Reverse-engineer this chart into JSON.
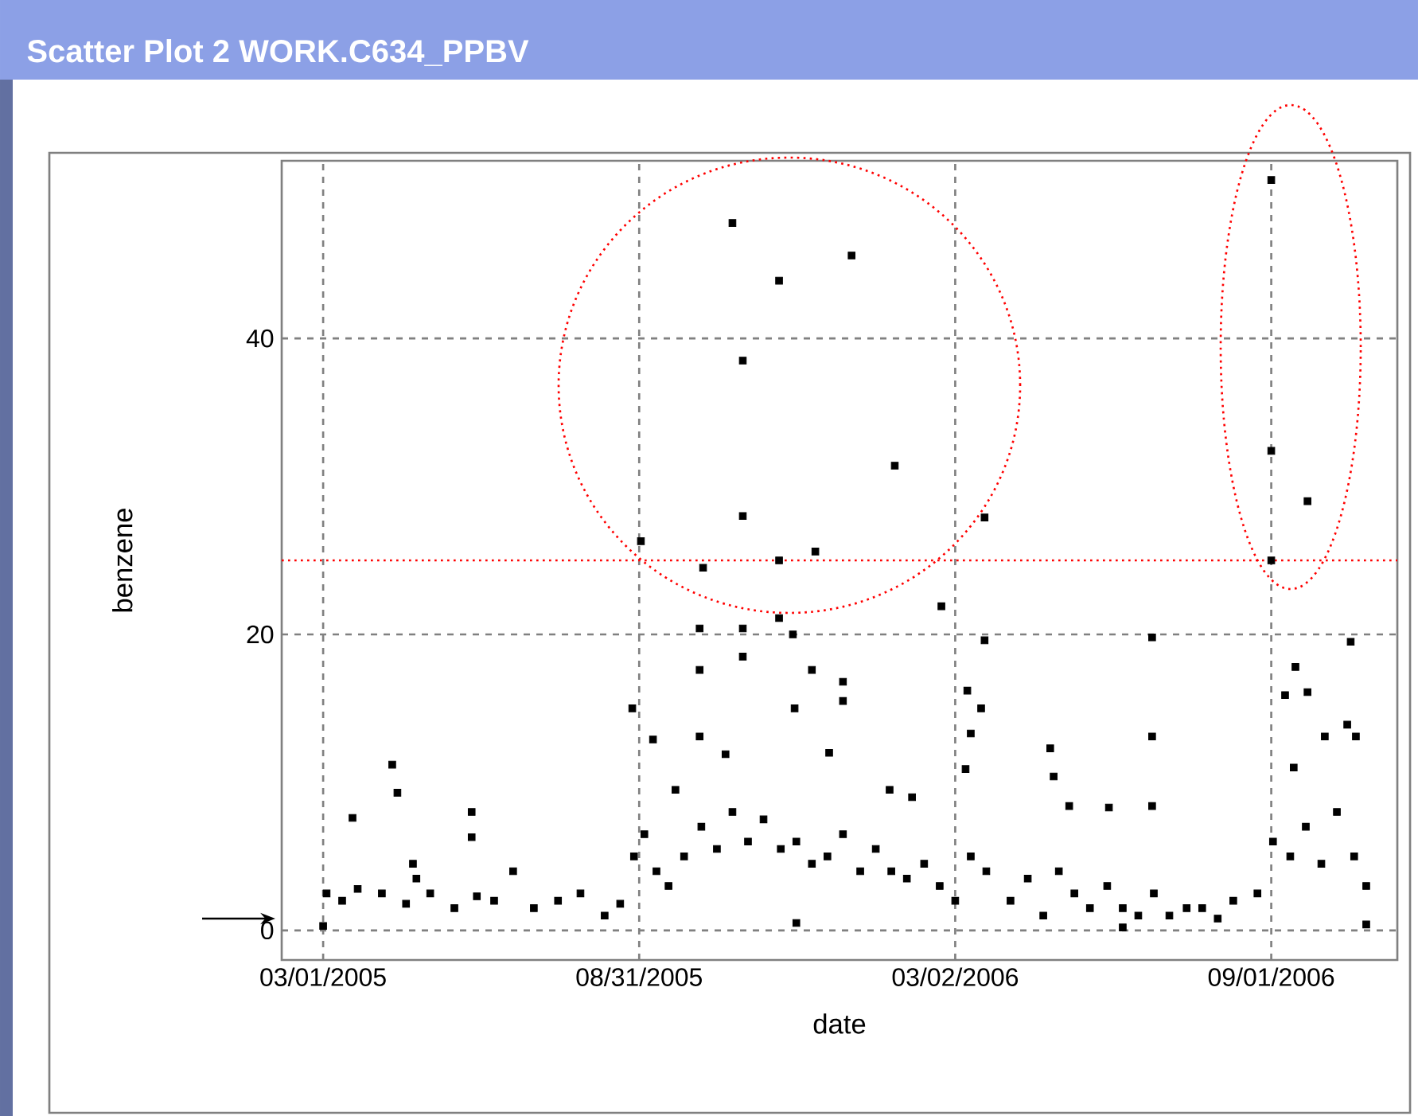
{
  "chart_data": {
    "type": "scatter",
    "title": "Scatter Plot 2 WORK.C634_PPBV",
    "xlabel": "date",
    "ylabel": "benzene",
    "color": "#000000",
    "marker": "square",
    "grid": true,
    "xlim": [
      "2005-02-05",
      "2006-11-13"
    ],
    "ylim": [
      -2,
      52
    ],
    "xticks": [
      {
        "value": "2005-03-01",
        "label": "03/01/2005"
      },
      {
        "value": "2005-08-31",
        "label": "08/31/2005"
      },
      {
        "value": "2006-03-02",
        "label": "03/02/2006"
      },
      {
        "value": "2006-09-01",
        "label": "09/01/2006"
      }
    ],
    "yticks": [
      0,
      20,
      40
    ],
    "ref_lines": [
      {
        "axis": "y",
        "value": 25,
        "color": "#ff0000",
        "line_style": "dotted"
      }
    ],
    "x": [
      "2005-10-24",
      "2005-11-20",
      "2005-10-30",
      "2005-10-30",
      "2005-09-01",
      "2005-10-07",
      "2005-11-20",
      "2005-12-11",
      "2005-11-20",
      "2005-10-05",
      "2005-10-30",
      "2005-11-28",
      "2005-10-30",
      "2005-10-05",
      "2005-12-09",
      "2005-08-27",
      "2005-11-29",
      "2005-04-10",
      "2005-04-13",
      "2005-03-18",
      "2005-05-26",
      "2005-05-26",
      "2005-04-22",
      "2005-09-08",
      "2005-10-05",
      "2005-10-20",
      "2005-12-19",
      "2005-09-21",
      "2006-01-01",
      "2006-01-26",
      "2006-03-19",
      "2006-02-22",
      "2006-03-19",
      "2006-06-24",
      "2006-09-01",
      "2006-09-01",
      "2006-09-01",
      "2006-09-22",
      "2006-10-17",
      "2006-09-15",
      "2006-09-09",
      "2006-09-22",
      "2006-03-09",
      "2006-03-17",
      "2006-03-11",
      "2006-04-26",
      "2006-04-28",
      "2006-06-24",
      "2006-10-15",
      "2006-10-20",
      "2005-12-27",
      "2005-12-27",
      "2006-05-07",
      "2006-05-30",
      "2006-06-24",
      "2006-03-08",
      "2006-01-23",
      "2006-02-05",
      "2006-10-02",
      "2006-09-14",
      "2005-03-03",
      "2005-03-12",
      "2005-03-21",
      "2005-04-04",
      "2005-04-18",
      "2005-04-24",
      "2005-05-02",
      "2005-05-16",
      "2005-05-29",
      "2005-06-08",
      "2005-06-19",
      "2005-07-01",
      "2005-07-15",
      "2005-07-28",
      "2005-08-11",
      "2005-08-20",
      "2005-08-28",
      "2005-09-03",
      "2005-09-10",
      "2005-09-17",
      "2005-09-26",
      "2005-10-06",
      "2005-10-15",
      "2005-10-24",
      "2005-11-02",
      "2005-11-11",
      "2005-11-21",
      "2005-11-30",
      "2005-12-09",
      "2005-12-18",
      "2005-12-27",
      "2006-01-06",
      "2006-01-15",
      "2006-01-24",
      "2006-02-02",
      "2006-02-12",
      "2006-02-21",
      "2006-03-02",
      "2006-03-11",
      "2006-03-20",
      "2006-04-03",
      "2006-04-13",
      "2006-04-22",
      "2006-05-01",
      "2006-05-10",
      "2006-05-19",
      "2006-05-29",
      "2006-06-07",
      "2006-06-16",
      "2006-06-25",
      "2006-07-04",
      "2006-07-14",
      "2006-07-23",
      "2006-08-01",
      "2006-08-10",
      "2006-08-24",
      "2006-09-02",
      "2006-09-12",
      "2006-09-21",
      "2006-09-30",
      "2006-10-09",
      "2006-10-19",
      "2006-10-26",
      "2005-03-01",
      "2005-11-30",
      "2006-06-07",
      "2006-10-26"
    ],
    "values": [
      47.8,
      43.9,
      38.5,
      28.0,
      26.3,
      24.5,
      25.0,
      25.6,
      21.1,
      20.4,
      20.4,
      20.0,
      18.5,
      17.6,
      17.6,
      15.0,
      15.0,
      11.2,
      9.3,
      7.6,
      8.0,
      6.3,
      4.5,
      12.9,
      13.1,
      11.9,
      12.0,
      9.5,
      45.6,
      31.4,
      27.9,
      21.9,
      19.6,
      19.8,
      50.7,
      32.4,
      25.0,
      29.0,
      19.5,
      17.8,
      15.9,
      16.1,
      16.2,
      15.0,
      13.3,
      12.3,
      10.4,
      13.1,
      13.9,
      13.1,
      16.8,
      15.5,
      8.4,
      8.3,
      8.4,
      10.9,
      9.5,
      9.0,
      13.1,
      11.0,
      2.5,
      2.0,
      2.8,
      2.5,
      1.8,
      3.5,
      2.5,
      1.5,
      2.3,
      2.0,
      4.0,
      1.5,
      2.0,
      2.5,
      1.0,
      1.8,
      5.0,
      6.5,
      4.0,
      3.0,
      5.0,
      7.0,
      5.5,
      8.0,
      6.0,
      7.5,
      5.5,
      6.0,
      4.5,
      5.0,
      6.5,
      4.0,
      5.5,
      4.0,
      3.5,
      4.5,
      3.0,
      2.0,
      5.0,
      4.0,
      2.0,
      3.5,
      1.0,
      4.0,
      2.5,
      1.5,
      3.0,
      1.5,
      1.0,
      2.5,
      1.0,
      1.5,
      1.5,
      0.8,
      2.0,
      2.5,
      6.0,
      5.0,
      7.0,
      4.5,
      8.0,
      5.0,
      3.0,
      0.3,
      0.5,
      0.2,
      0.4
    ]
  }
}
